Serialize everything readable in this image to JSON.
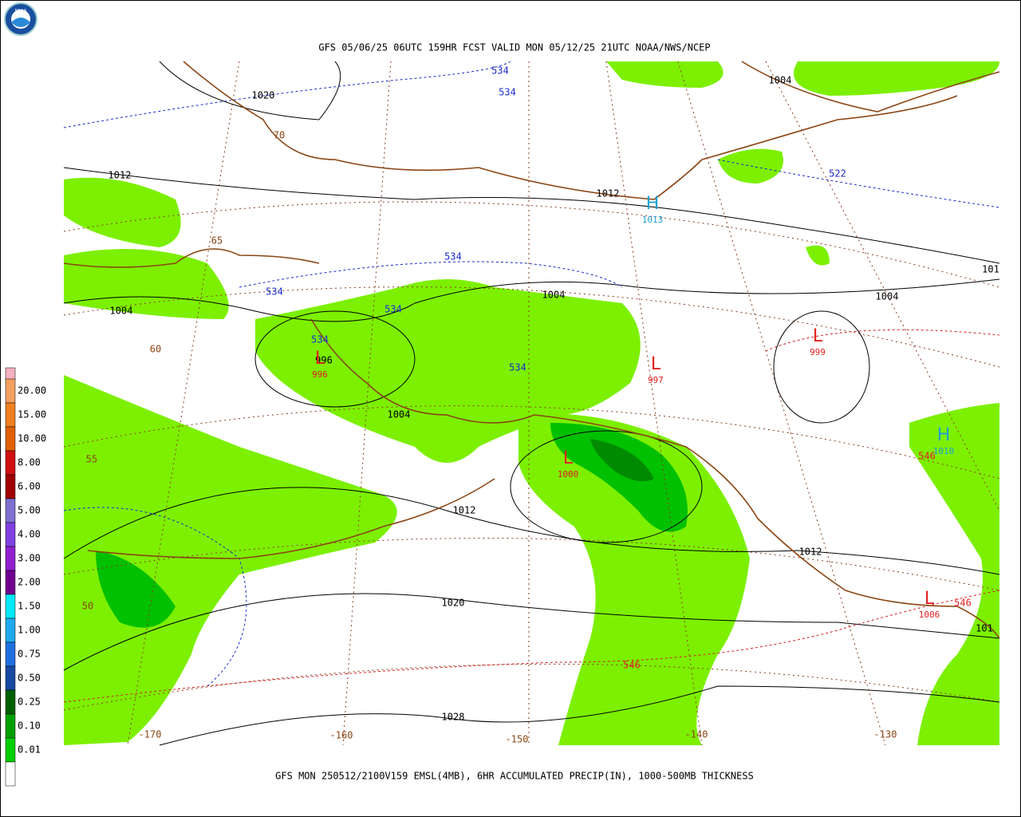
{
  "header": {
    "title": "GFS 05/06/25 06UTC 159HR FCST VALID MON 05/12/25 21UTC NOAA/NWS/NCEP",
    "logo_text": "NOAA"
  },
  "footer": {
    "caption": "GFS MON 250512/2100V159 EMSL(4MB), 6HR ACCUMULATED PRECIP(IN), 1000-500MB THICKNESS"
  },
  "legend": {
    "labels": [
      "20.00",
      "15.00",
      "10.00",
      "8.00",
      "6.00",
      "5.00",
      "4.00",
      "3.00",
      "2.00",
      "1.50",
      "1.00",
      "0.75",
      "0.50",
      "0.25",
      "0.10",
      "0.01"
    ]
  },
  "map": {
    "isobar_labels": [
      "1020",
      "1012",
      "1012",
      "1004",
      "1004",
      "1004",
      "1004",
      "1004",
      "1012",
      "1012",
      "1020",
      "1028",
      "101",
      "101",
      "996"
    ],
    "thickness_labels": [
      "534",
      "534",
      "534",
      "534",
      "534",
      "534",
      "534",
      "522",
      "546",
      "546",
      "546"
    ],
    "grid_labels": [
      "70",
      "65",
      "60",
      "55",
      "50",
      "-170",
      "-160",
      "-150",
      "-140",
      "-130"
    ],
    "centers": [
      {
        "symbol": "L",
        "value": "996"
      },
      {
        "symbol": "L",
        "value": "1000"
      },
      {
        "symbol": "L",
        "value": "997"
      },
      {
        "symbol": "L",
        "value": "999"
      },
      {
        "symbol": "H",
        "value": "1013"
      },
      {
        "symbol": "H",
        "value": "1010"
      },
      {
        "symbol": "L",
        "value": "1006"
      }
    ]
  }
}
